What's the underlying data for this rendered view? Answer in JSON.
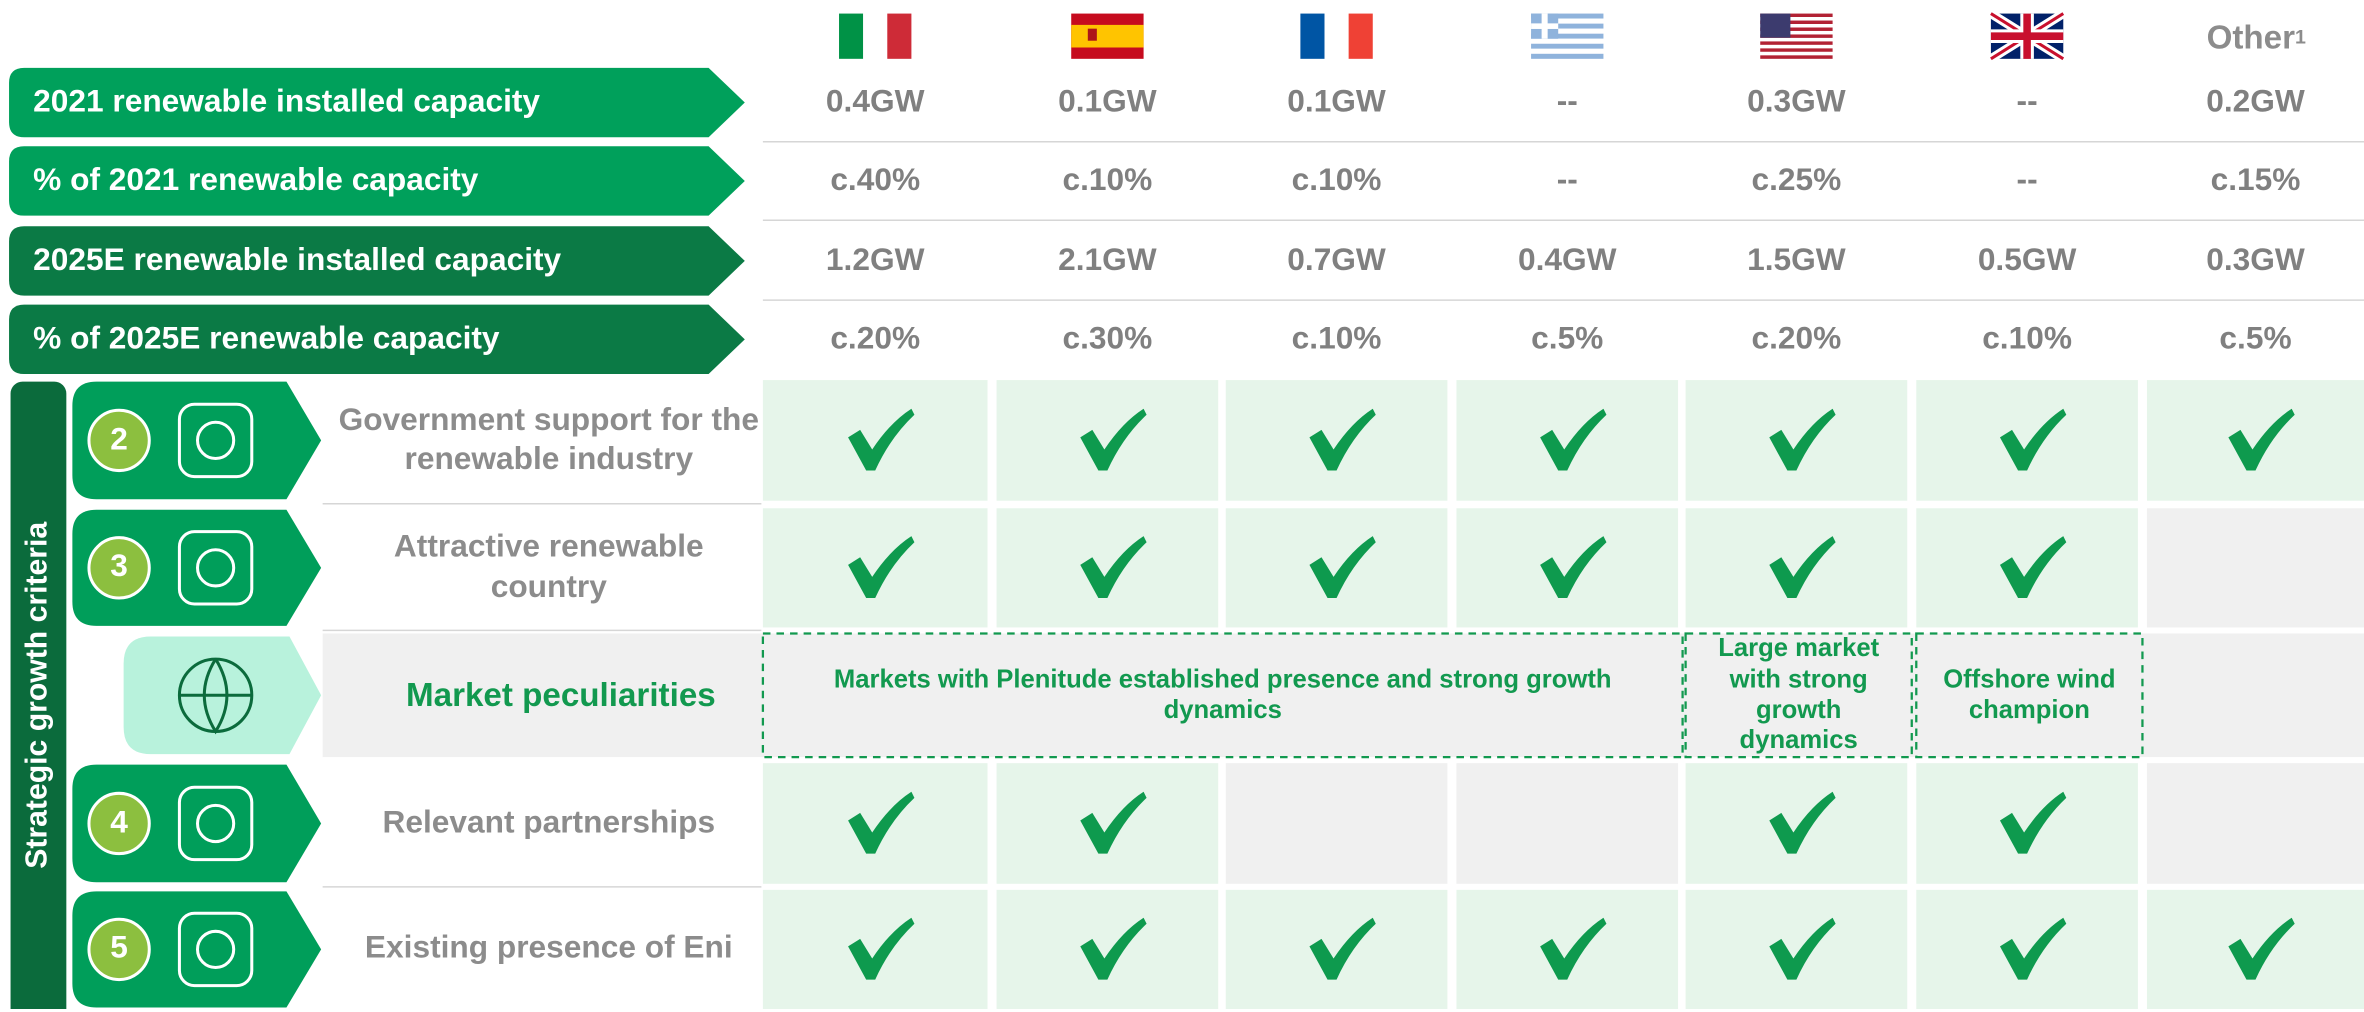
{
  "header": {
    "other_label": "Other",
    "other_note": "1"
  },
  "metrics": [
    {
      "label": "2021 renewable installed capacity",
      "values": [
        "0.4GW",
        "0.1GW",
        "0.1GW",
        "--",
        "0.3GW",
        "--",
        "0.2GW"
      ]
    },
    {
      "label": "% of 2021 renewable capacity",
      "values": [
        "c.40%",
        "c.10%",
        "c.10%",
        "--",
        "c.25%",
        "--",
        "c.15%"
      ]
    },
    {
      "label": "2025E renewable installed capacity",
      "values": [
        "1.2GW",
        "2.1GW",
        "0.7GW",
        "0.4GW",
        "1.5GW",
        "0.5GW",
        "0.3GW"
      ]
    },
    {
      "label": "% of 2025E renewable capacity",
      "values": [
        "c.20%",
        "c.30%",
        "c.10%",
        "c.5%",
        "c.20%",
        "c.10%",
        "c.5%"
      ]
    }
  ],
  "side_label": "Strategic growth criteria",
  "rows": [
    {
      "number": "2",
      "label": "Government support for the renewable industry",
      "checks": [
        true,
        true,
        true,
        true,
        true,
        true,
        true
      ]
    },
    {
      "number": "3",
      "label": "Attractive renewable country",
      "checks": [
        true,
        true,
        true,
        true,
        true,
        true,
        false
      ]
    },
    {
      "label": "Market peculiarities",
      "notes": [
        "Markets with Plenitude established presence and strong growth dynamics",
        "Large market with strong growth dynamics",
        "Offshore wind champion"
      ]
    },
    {
      "number": "4",
      "label": "Relevant partnerships",
      "checks": [
        true,
        true,
        false,
        false,
        true,
        true,
        false
      ]
    },
    {
      "number": "5",
      "label": "Existing presence of Eni",
      "checks": [
        true,
        true,
        true,
        true,
        true,
        true,
        true
      ]
    }
  ]
}
